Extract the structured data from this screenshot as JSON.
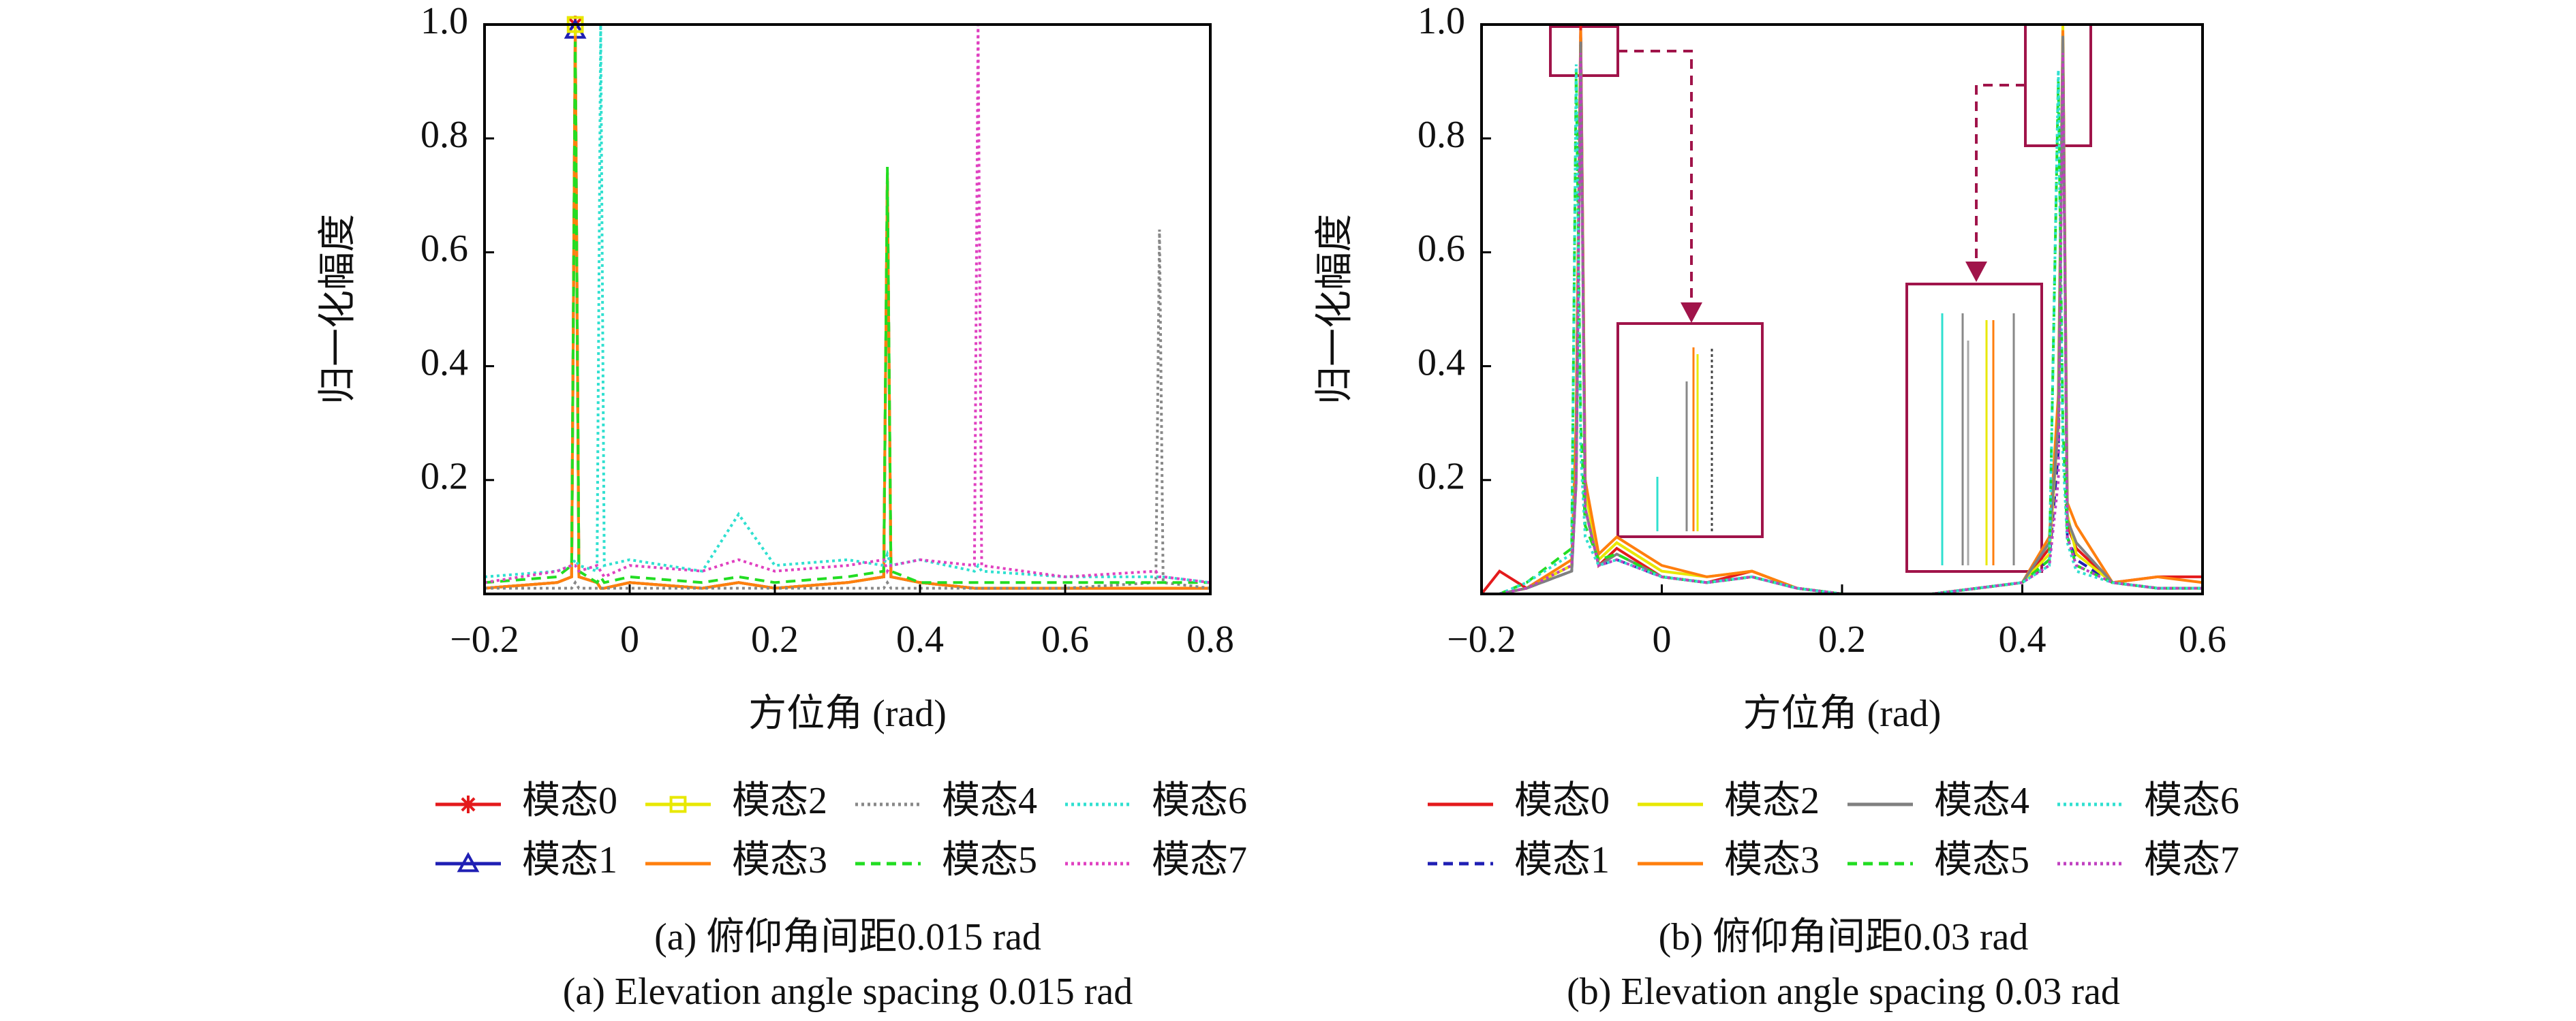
{
  "chart_data": [
    {
      "type": "line",
      "xlabel": "方位角 (rad)",
      "ylabel": "归一化幅度",
      "caption": "(a) 俯仰角间距0.015 rad",
      "caption_en": "(a) Elevation angle spacing 0.015 rad",
      "xlim": [
        -0.2,
        0.8
      ],
      "ylim": [
        0,
        1
      ],
      "xticks": [
        {
          "value": -0.2,
          "label": "−0.2"
        },
        0,
        0.2,
        0.4,
        0.6,
        0.8
      ],
      "yticks": [
        0.2,
        0.4,
        0.6,
        0.8,
        {
          "value": 1,
          "label": "1.0"
        }
      ],
      "x": [
        -0.2,
        -0.1,
        -0.08,
        -0.075,
        -0.07,
        -0.045,
        -0.04,
        -0.035,
        0,
        0.1,
        0.15,
        0.2,
        0.3,
        0.35,
        0.355,
        0.36,
        0.4,
        0.475,
        0.48,
        0.485,
        0.6,
        0.725,
        0.73,
        0.735,
        0.8
      ],
      "series": [
        {
          "name": "模态0",
          "color": "#e41a1c",
          "line_style": "solid",
          "marker": "star",
          "values": [
            0.01,
            0.02,
            0.03,
            1.0,
            0.03,
            0.02,
            0.01,
            0.01,
            0.02,
            0.01,
            0.02,
            0.01,
            0.02,
            0.03,
            0.73,
            0.03,
            0.02,
            0.01,
            0.01,
            0.01,
            0.01,
            0.01,
            0.01,
            0.01,
            0.01
          ]
        },
        {
          "name": "模态1",
          "color": "#1f1fb4",
          "line_style": "solid",
          "marker": "triangle",
          "values": [
            0.01,
            0.02,
            0.03,
            0.99,
            0.03,
            0.02,
            0.01,
            0.01,
            0.02,
            0.01,
            0.02,
            0.01,
            0.02,
            0.03,
            0.74,
            0.03,
            0.02,
            0.01,
            0.01,
            0.01,
            0.01,
            0.01,
            0.01,
            0.01,
            0.01
          ]
        },
        {
          "name": "模态2",
          "color": "#e8e800",
          "line_style": "solid",
          "marker": "square",
          "values": [
            0.01,
            0.02,
            0.03,
            1.0,
            0.03,
            0.02,
            0.01,
            0.01,
            0.02,
            0.01,
            0.02,
            0.01,
            0.02,
            0.03,
            0.74,
            0.03,
            0.02,
            0.01,
            0.01,
            0.01,
            0.01,
            0.01,
            0.01,
            0.01,
            0.01
          ]
        },
        {
          "name": "模态3",
          "color": "#ff7f0e",
          "line_style": "solid",
          "values": [
            0.01,
            0.02,
            0.03,
            0.98,
            0.03,
            0.02,
            0.01,
            0.01,
            0.02,
            0.01,
            0.02,
            0.01,
            0.02,
            0.03,
            0.73,
            0.03,
            0.02,
            0.01,
            0.01,
            0.01,
            0.01,
            0.01,
            0.01,
            0.01,
            0.01
          ]
        },
        {
          "name": "模态4",
          "color": "#888888",
          "line_style": "dotted",
          "values": [
            0.01,
            0.01,
            0.01,
            0.02,
            0.01,
            0.01,
            0.01,
            0.01,
            0.01,
            0.01,
            0.01,
            0.01,
            0.01,
            0.01,
            0.02,
            0.01,
            0.01,
            0.01,
            0.01,
            0.01,
            0.01,
            0.02,
            0.64,
            0.02,
            0.01
          ]
        },
        {
          "name": "模态5",
          "color": "#22dd22",
          "line_style": "dashed",
          "values": [
            0.02,
            0.03,
            0.05,
            0.97,
            0.04,
            0.02,
            0.03,
            0.02,
            0.03,
            0.02,
            0.03,
            0.02,
            0.03,
            0.04,
            0.75,
            0.04,
            0.02,
            0.02,
            0.02,
            0.02,
            0.02,
            0.02,
            0.02,
            0.02,
            0.02
          ]
        },
        {
          "name": "模态6",
          "color": "#30e0d0",
          "line_style": "dotted",
          "values": [
            0.03,
            0.04,
            0.05,
            0.06,
            0.05,
            0.04,
            1.0,
            0.05,
            0.06,
            0.04,
            0.14,
            0.05,
            0.06,
            0.05,
            0.07,
            0.05,
            0.06,
            0.04,
            0.05,
            0.04,
            0.03,
            0.03,
            0.03,
            0.03,
            0.02
          ]
        },
        {
          "name": "模态7",
          "color": "#e040c0",
          "line_style": "dotted",
          "values": [
            0.02,
            0.04,
            0.05,
            0.05,
            0.04,
            0.05,
            0.04,
            0.03,
            0.05,
            0.04,
            0.06,
            0.04,
            0.05,
            0.06,
            0.04,
            0.05,
            0.06,
            0.05,
            1.0,
            0.05,
            0.03,
            0.04,
            0.03,
            0.03,
            0.02
          ]
        }
      ]
    },
    {
      "type": "line",
      "xlabel": "方位角 (rad)",
      "ylabel": "归一化幅度",
      "caption": "(b) 俯仰角间距0.03 rad",
      "caption_en": "(b) Elevation angle spacing 0.03 rad",
      "xlim": [
        -0.2,
        0.6
      ],
      "ylim": [
        0,
        1
      ],
      "xticks": [
        {
          "value": -0.2,
          "label": "−0.2"
        },
        0,
        0.2,
        0.4,
        0.6
      ],
      "yticks": [
        0.2,
        0.4,
        0.6,
        0.8,
        {
          "value": 1,
          "label": "1.0"
        }
      ],
      "x": [
        -0.2,
        -0.18,
        -0.15,
        -0.1,
        -0.095,
        -0.09,
        -0.085,
        -0.07,
        -0.05,
        0,
        0.05,
        0.1,
        0.15,
        0.2,
        0.3,
        0.4,
        0.43,
        0.44,
        0.445,
        0.45,
        0.46,
        0.5,
        0.55,
        0.6
      ],
      "series": [
        {
          "name": "模态0",
          "color": "#e41a1c",
          "line_style": "solid",
          "values": [
            0.0,
            0.04,
            0.01,
            0.05,
            0.3,
            1.0,
            0.2,
            0.05,
            0.08,
            0.03,
            0.02,
            0.04,
            0.01,
            0.0,
            0.0,
            0.02,
            0.08,
            0.3,
            0.98,
            0.12,
            0.08,
            0.02,
            0.03,
            0.03
          ]
        },
        {
          "name": "模态1",
          "color": "#1f1fb4",
          "line_style": "dashed",
          "values": [
            0.0,
            0.0,
            0.01,
            0.04,
            0.2,
            0.99,
            0.15,
            0.05,
            0.06,
            0.03,
            0.02,
            0.03,
            0.01,
            0.0,
            0.0,
            0.02,
            0.06,
            0.25,
            0.97,
            0.1,
            0.06,
            0.02,
            0.01,
            0.01
          ]
        },
        {
          "name": "模态2",
          "color": "#e8e800",
          "line_style": "solid",
          "values": [
            0.0,
            0.0,
            0.01,
            0.05,
            0.25,
            0.98,
            0.18,
            0.06,
            0.09,
            0.04,
            0.03,
            0.04,
            0.01,
            0.0,
            0.0,
            0.02,
            0.07,
            0.3,
            1.0,
            0.14,
            0.07,
            0.02,
            0.01,
            0.01
          ]
        },
        {
          "name": "模态3",
          "color": "#ff7f0e",
          "line_style": "solid",
          "values": [
            0.0,
            0.0,
            0.01,
            0.06,
            0.3,
            0.99,
            0.2,
            0.07,
            0.1,
            0.05,
            0.03,
            0.04,
            0.01,
            0.0,
            0.0,
            0.02,
            0.1,
            0.35,
            0.99,
            0.16,
            0.12,
            0.02,
            0.03,
            0.02
          ]
        },
        {
          "name": "模态4",
          "color": "#808080",
          "line_style": "solid",
          "values": [
            0.0,
            0.0,
            0.01,
            0.04,
            0.2,
            0.97,
            0.15,
            0.05,
            0.07,
            0.03,
            0.02,
            0.03,
            0.01,
            0.0,
            0.0,
            0.02,
            0.09,
            0.3,
            0.98,
            0.13,
            0.09,
            0.02,
            0.01,
            0.01
          ]
        },
        {
          "name": "模态5",
          "color": "#22dd22",
          "line_style": "dashed",
          "values": [
            0.0,
            0.0,
            0.02,
            0.08,
            0.92,
            0.3,
            0.12,
            0.06,
            0.07,
            0.03,
            0.02,
            0.03,
            0.01,
            0.0,
            0.0,
            0.02,
            0.06,
            0.9,
            0.3,
            0.1,
            0.05,
            0.02,
            0.01,
            0.01
          ]
        },
        {
          "name": "模态6",
          "color": "#30e0d0",
          "line_style": "dotted",
          "values": [
            0.0,
            0.0,
            0.02,
            0.07,
            0.93,
            0.25,
            0.1,
            0.05,
            0.06,
            0.03,
            0.02,
            0.03,
            0.01,
            0.0,
            0.0,
            0.02,
            0.05,
            0.92,
            0.25,
            0.09,
            0.04,
            0.02,
            0.01,
            0.01
          ]
        },
        {
          "name": "模态7",
          "color": "#c040c0",
          "line_style": "dotted",
          "values": [
            0.0,
            0.0,
            0.01,
            0.05,
            0.2,
            0.95,
            0.15,
            0.05,
            0.06,
            0.03,
            0.02,
            0.03,
            0.01,
            0.0,
            0.0,
            0.02,
            0.05,
            0.2,
            0.95,
            0.1,
            0.05,
            0.02,
            0.01,
            0.01
          ]
        }
      ]
    }
  ]
}
